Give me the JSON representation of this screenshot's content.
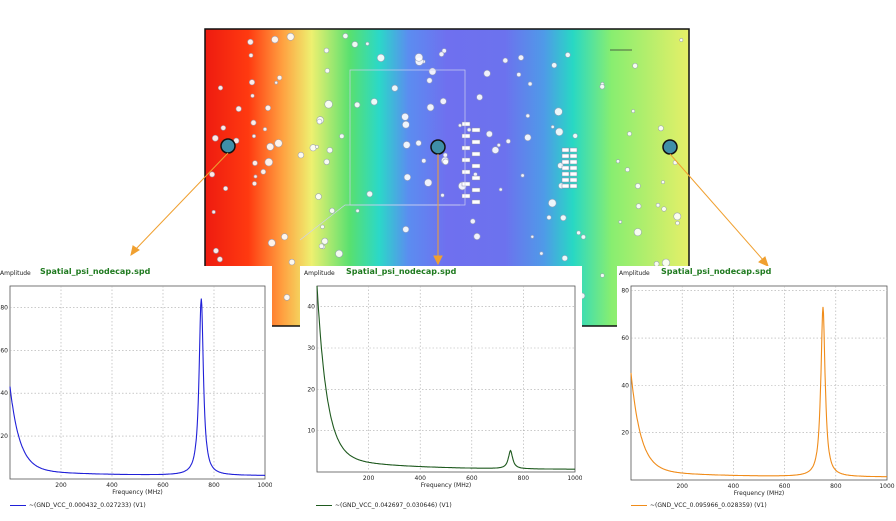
{
  "colors": {
    "probe_fill": "#3f8fa8",
    "arrow": "#f0a030",
    "title_green": "#1f7a1f",
    "series": [
      "#2020d8",
      "#1f5a1f",
      "#f08c1a"
    ]
  },
  "chart_data": [
    {
      "type": "line",
      "title": "Spatial_psi_nodecap.spd",
      "ylabel": "Amplitude",
      "xlabel": "Frequency (MHz)",
      "xlim": [
        0,
        1000
      ],
      "ylim": [
        0,
        90
      ],
      "xticks": [
        200,
        400,
        600,
        800,
        1000
      ],
      "yticks": [
        20,
        40,
        60,
        80
      ],
      "grid": true,
      "peak": {
        "x": 750,
        "y": 84
      },
      "start": {
        "x": 0,
        "y": 40
      },
      "floor": 1.5,
      "series": [
        {
          "name": "~(GND_VCC_0.000432_0.027233) (V1)"
        }
      ]
    },
    {
      "type": "line",
      "title": "Spatial_psi_nodecap.spd",
      "ylabel": "Amplitude",
      "xlabel": "Frequency (MHz)",
      "xlim": [
        0,
        1000
      ],
      "ylim": [
        0,
        45
      ],
      "xticks": [
        200,
        400,
        600,
        800,
        1000
      ],
      "yticks": [
        10,
        20,
        30,
        40
      ],
      "grid": true,
      "peak": {
        "x": 750,
        "y": 5
      },
      "start": {
        "x": 0,
        "y": 42
      },
      "floor": 0.6,
      "series": [
        {
          "name": "~(GND_VCC_0.042697_0.030646) (V1)"
        }
      ]
    },
    {
      "type": "line",
      "title": "Spatial_psi_nodecap.spd",
      "ylabel": "Amplitude",
      "xlabel": "Frequency (MHz)",
      "xlim": [
        0,
        1000
      ],
      "ylim": [
        0,
        82
      ],
      "xticks": [
        200,
        400,
        600,
        800,
        1000
      ],
      "yticks": [
        20,
        40,
        60,
        80
      ],
      "grid": true,
      "peak": {
        "x": 750,
        "y": 73
      },
      "start": {
        "x": 0,
        "y": 42
      },
      "floor": 1.2,
      "series": [
        {
          "name": "~(GND_VCC_0.095966_0.028359) (V1)"
        }
      ]
    }
  ]
}
